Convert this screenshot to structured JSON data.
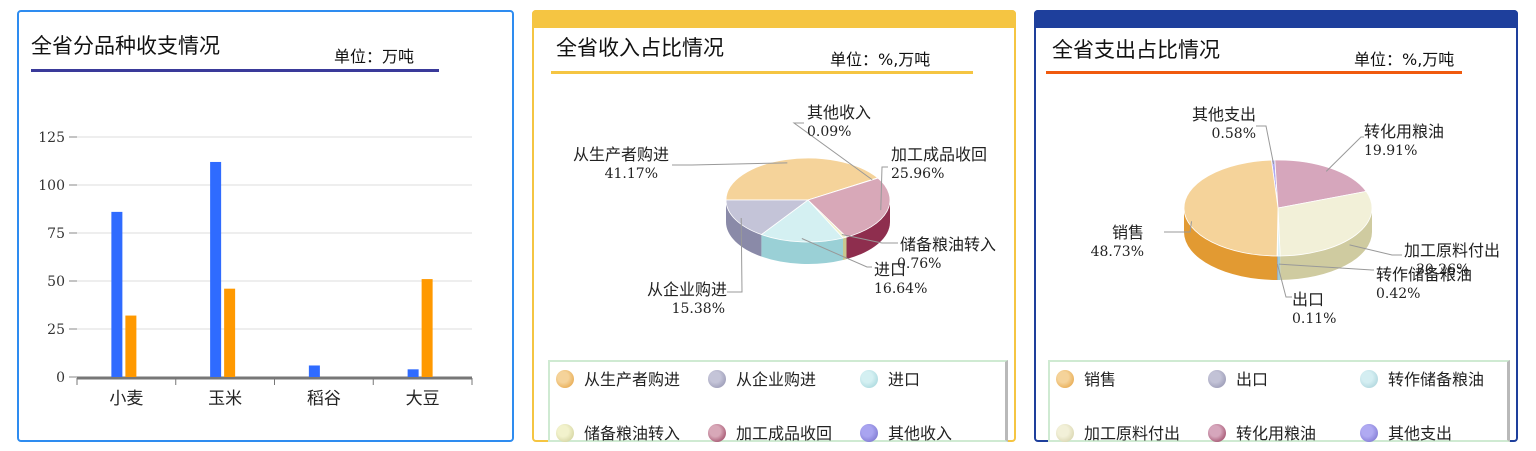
{
  "panels": {
    "p1": {
      "title": "全省分品种收支情况",
      "unit": "单位：万吨"
    },
    "p2": {
      "title": "全省收入占比情况",
      "unit": "单位：%,万吨"
    },
    "p3": {
      "title": "全省支出占比情况",
      "unit": "单位：%,万吨"
    }
  },
  "colors": {
    "blue": "#2f6bff",
    "orange": "#ff9900",
    "p1_border": "#2e8cf0",
    "p2_border": "#f5c542",
    "p3_border": "#1e3f9c",
    "p3_line": "#f05a0e"
  },
  "chart_data": [
    {
      "type": "bar",
      "title": "全省分品种收支情况",
      "categories": [
        "小麦",
        "玉米",
        "稻谷",
        "大豆"
      ],
      "series": [
        {
          "color": "#2f6bff",
          "values": [
            86,
            112,
            6,
            4
          ]
        },
        {
          "color": "#ff9900",
          "values": [
            32,
            46,
            0,
            51
          ]
        }
      ],
      "ylim": [
        0,
        125
      ],
      "yticks": [
        0,
        25,
        50,
        75,
        100,
        125
      ],
      "grid": true
    },
    {
      "type": "pie",
      "title": "全省收入占比情况",
      "slices": [
        {
          "label": "从生产者购进",
          "value": 41.17,
          "value_text": "41.17%",
          "color": "#f5d39a",
          "dark": "#e29a32"
        },
        {
          "label": "其他收入",
          "value": 0.09,
          "value_text": "0.09%",
          "color": "#a9a4f0",
          "dark": "#6e68c4"
        },
        {
          "label": "加工成品收回",
          "value": 25.96,
          "value_text": "25.96%",
          "color": "#d8a8b8",
          "dark": "#8e2e4e"
        },
        {
          "label": "储备粮油转入",
          "value": 0.76,
          "value_text": "0.76%",
          "color": "#f2f2cc",
          "dark": "#c8c890"
        },
        {
          "label": "进口",
          "value": 16.64,
          "value_text": "16.64%",
          "color": "#d4f0f2",
          "dark": "#9ad0d6"
        },
        {
          "label": "从企业购进",
          "value": 15.38,
          "value_text": "15.38%",
          "color": "#c4c4d8",
          "dark": "#8a8aa8"
        }
      ],
      "legend": [
        "从生产者购进",
        "从企业购进",
        "进口",
        "储备粮油转入",
        "加工成品收回",
        "其他收入"
      ]
    },
    {
      "type": "pie",
      "title": "全省支出占比情况",
      "slices": [
        {
          "label": "其他支出",
          "value": 0.58,
          "value_text": "0.58%",
          "color": "#b0aaf2",
          "dark": "#7068c8"
        },
        {
          "label": "转化用粮油",
          "value": 19.91,
          "value_text": "19.91%",
          "color": "#d6a6bc",
          "dark": "#8e2e4e"
        },
        {
          "label": "加工原料付出",
          "value": 30.26,
          "value_text": "30.26%",
          "color": "#f2f0d8",
          "dark": "#cfcba0"
        },
        {
          "label": "转作储备粮油",
          "value": 0.42,
          "value_text": "0.42%",
          "color": "#d4eef2",
          "dark": "#a0ccd4"
        },
        {
          "label": "出口",
          "value": 0.11,
          "value_text": "0.11%",
          "color": "#c2c2d6",
          "dark": "#8a8aa8"
        },
        {
          "label": "销售",
          "value": 48.73,
          "value_text": "48.73%",
          "color": "#f5d39a",
          "dark": "#e29a32"
        }
      ],
      "legend": [
        "销售",
        "出口",
        "转作储备粮油",
        "加工原料付出",
        "转化用粮油",
        "其他支出"
      ]
    }
  ]
}
